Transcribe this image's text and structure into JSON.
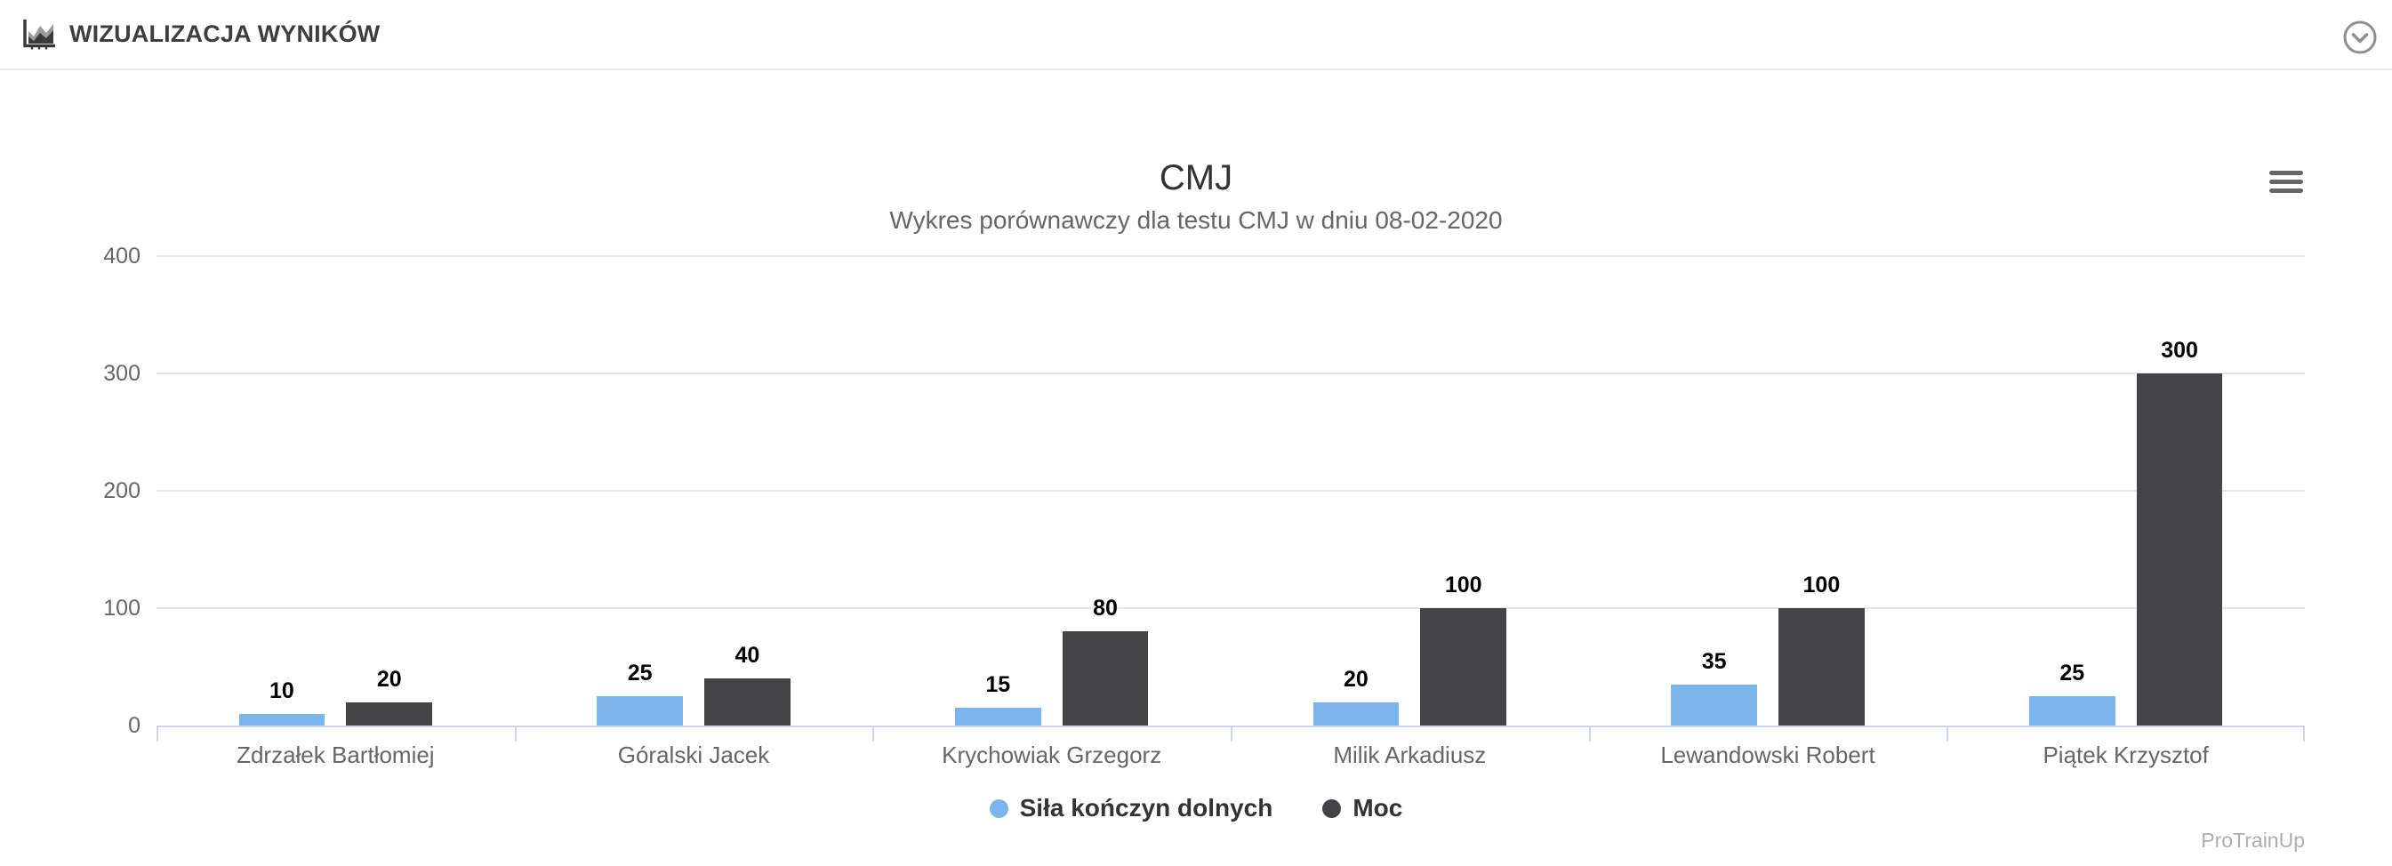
{
  "header": {
    "title": "WIZUALIZACJA WYNIKÓW"
  },
  "chart_data": {
    "type": "bar",
    "title": "CMJ",
    "subtitle": "Wykres porównawczy dla testu CMJ w dniu 08-02-2020",
    "categories": [
      "Zdrzałek Bartłomiej",
      "Góralski Jacek",
      "Krychowiak Grzegorz",
      "Milik Arkadiusz",
      "Lewandowski Robert",
      "Piątek Krzysztof"
    ],
    "series": [
      {
        "name": "Siła kończyn dolnych",
        "color": "#7cb5ec",
        "values": [
          10,
          25,
          15,
          20,
          35,
          25
        ]
      },
      {
        "name": "Moc",
        "color": "#434348",
        "values": [
          20,
          40,
          80,
          100,
          100,
          300
        ]
      }
    ],
    "ylim": [
      0,
      400
    ],
    "yticks": [
      0,
      100,
      200,
      300,
      400
    ],
    "grid": true,
    "data_labels": true,
    "legend_position": "bottom",
    "style": {
      "grid_color": "#e6e6e6",
      "axis_line_color": "#ccd6eb",
      "axis_label_color": "#666666",
      "data_label_color": "#000000"
    }
  },
  "export_menu": {
    "icon_name": "hamburger-menu-icon"
  },
  "footer": {
    "credit": "ProTrainUp"
  }
}
